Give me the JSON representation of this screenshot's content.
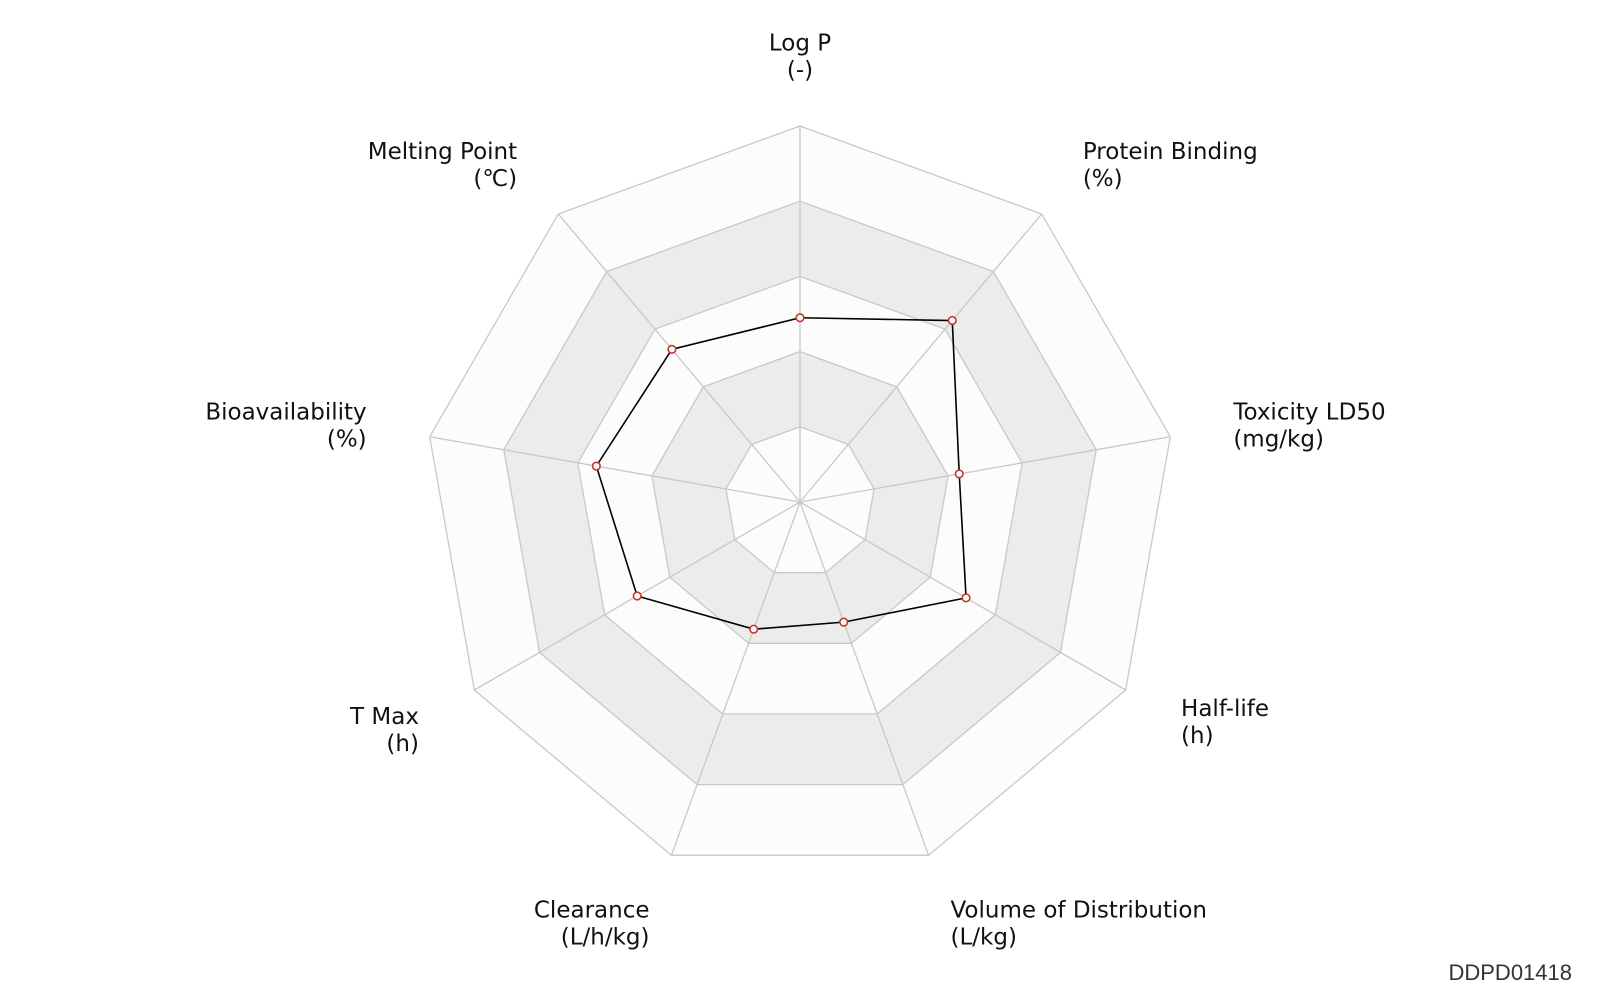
{
  "chart_data": {
    "type": "radar",
    "axes": [
      {
        "name": "Log P",
        "unit": "(-)"
      },
      {
        "name": "Protein Binding",
        "unit": "(%)"
      },
      {
        "name": "Toxicity LD50",
        "unit": "(mg/kg)"
      },
      {
        "name": "Half-life",
        "unit": "(h)"
      },
      {
        "name": "Volume of Distribution",
        "unit": "(L/kg)"
      },
      {
        "name": "Clearance",
        "unit": "(L/h/kg)"
      },
      {
        "name": "T Max",
        "unit": "(h)"
      },
      {
        "name": "Bioavailability",
        "unit": "(%)"
      },
      {
        "name": "Melting Point",
        "unit": "(℃)"
      }
    ],
    "rings": 5,
    "range": [
      0,
      1
    ],
    "series": [
      {
        "values": [
          0.49,
          0.63,
          0.43,
          0.51,
          0.34,
          0.36,
          0.5,
          0.55,
          0.53
        ]
      }
    ],
    "colors": {
      "line": "#000000",
      "marker_stroke": "#c0392b",
      "marker_fill": "#ffffff",
      "grid": "#c8c8c8",
      "band_light": "#fcfcfc",
      "band_dark": "#ececec"
    }
  },
  "footer": {
    "id": "DDPD01418"
  }
}
